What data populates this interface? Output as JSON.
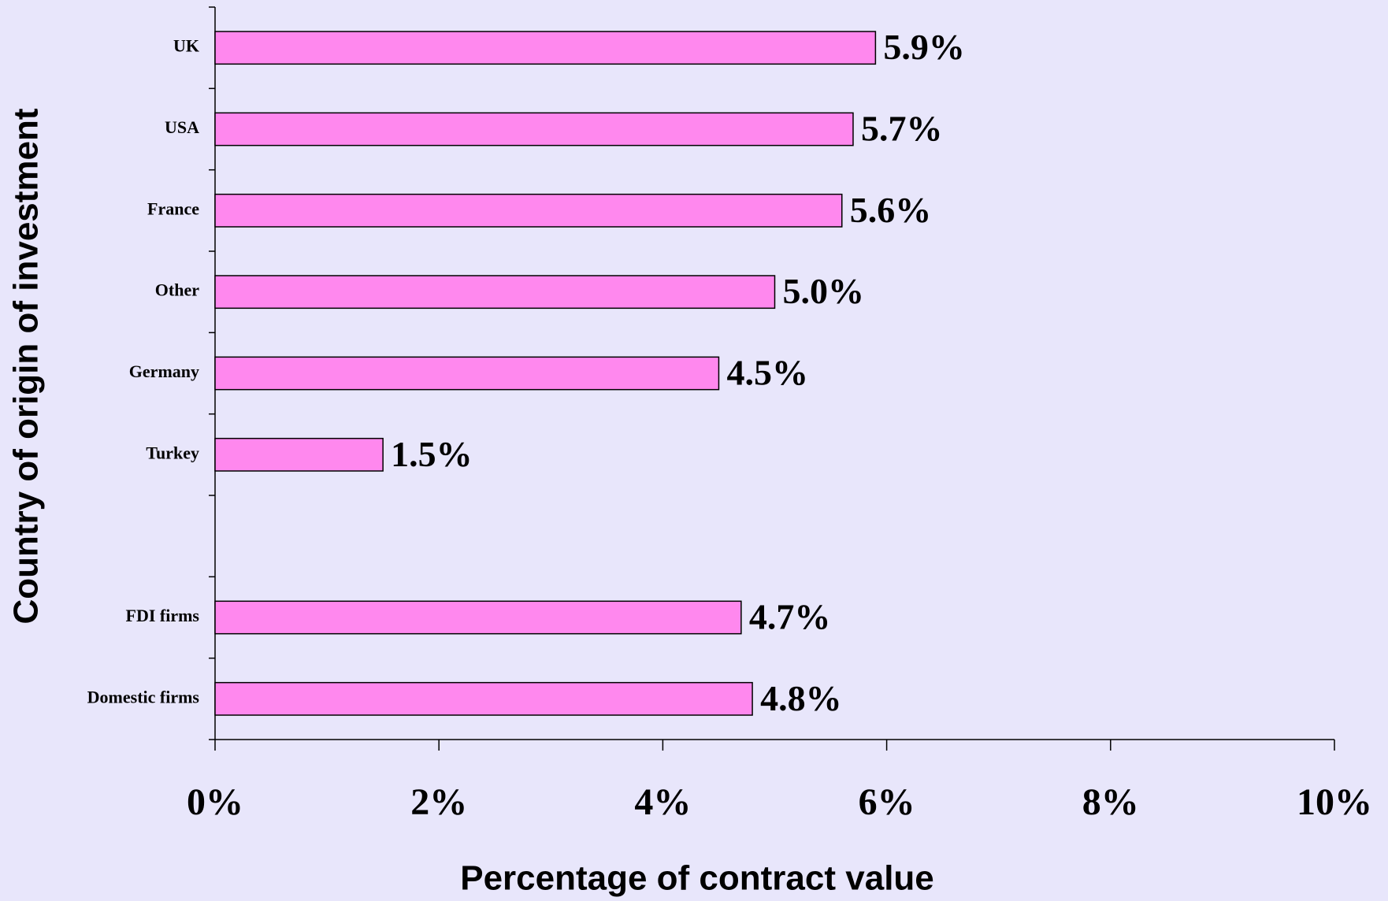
{
  "chart_data": {
    "type": "bar",
    "orientation": "horizontal",
    "xlabel": "Percentage of contract value",
    "ylabel": "Country of origin of investment",
    "categories": [
      "UK",
      "USA",
      "France",
      "Other",
      "Germany",
      "Turkey",
      null,
      "FDI firms",
      "Domestic firms"
    ],
    "values": [
      5.9,
      5.7,
      5.6,
      5.0,
      4.5,
      1.5,
      null,
      4.7,
      4.8
    ],
    "value_labels": [
      "5.9%",
      "5.7%",
      "5.6%",
      "5.0%",
      "4.5%",
      "1.5%",
      null,
      "4.7%",
      "4.8%"
    ],
    "color": "#ff88ee",
    "xlim": [
      0,
      10
    ],
    "xticks": [
      {
        "value": 0,
        "label": "0%"
      },
      {
        "value": 2,
        "label": "2%"
      },
      {
        "value": 4,
        "label": "4%"
      },
      {
        "value": 6,
        "label": "6%"
      },
      {
        "value": 8,
        "label": "8%"
      },
      {
        "value": 10,
        "label": "10%"
      }
    ],
    "grid": false
  }
}
